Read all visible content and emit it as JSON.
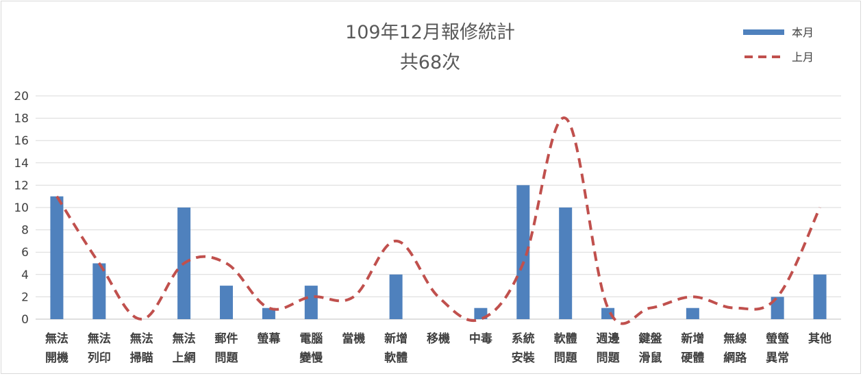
{
  "chart_data": {
    "type": "bar",
    "title": "109年12月報修統計",
    "subtitle": "共68次",
    "categories": [
      [
        "無法",
        "開機"
      ],
      [
        "無法",
        "列印"
      ],
      [
        "無法",
        "掃瞄"
      ],
      [
        "無法",
        "上網"
      ],
      [
        "郵件",
        "問題"
      ],
      [
        "螢幕"
      ],
      [
        "電腦",
        "變慢"
      ],
      [
        "當機"
      ],
      [
        "新增",
        "軟體"
      ],
      [
        "移機"
      ],
      [
        "中毒"
      ],
      [
        "系統",
        "安裝"
      ],
      [
        "軟體",
        "問題"
      ],
      [
        "週邊",
        "問題"
      ],
      [
        "鍵盤",
        "滑鼠"
      ],
      [
        "新增",
        "硬體"
      ],
      [
        "無線",
        "網路"
      ],
      [
        "螢螢",
        "異常"
      ],
      [
        "其他"
      ]
    ],
    "series": [
      {
        "name": "本月",
        "type": "bar",
        "color": "#4f81bd",
        "values": [
          11,
          5,
          0,
          10,
          3,
          1,
          3,
          0,
          4,
          0,
          1,
          12,
          10,
          1,
          0,
          1,
          0,
          2,
          4
        ]
      },
      {
        "name": "上月",
        "type": "line",
        "style": "dashed",
        "color": "#c0504d",
        "values": [
          11,
          5,
          0,
          5,
          5,
          1,
          2,
          2,
          7,
          2,
          0,
          5,
          18,
          1,
          1,
          2,
          1,
          2,
          10
        ]
      }
    ],
    "ylim": [
      0,
      20
    ],
    "yticks": [
      0,
      2,
      4,
      6,
      8,
      10,
      12,
      14,
      16,
      18,
      20
    ],
    "grid": true,
    "legend": "top-right"
  }
}
